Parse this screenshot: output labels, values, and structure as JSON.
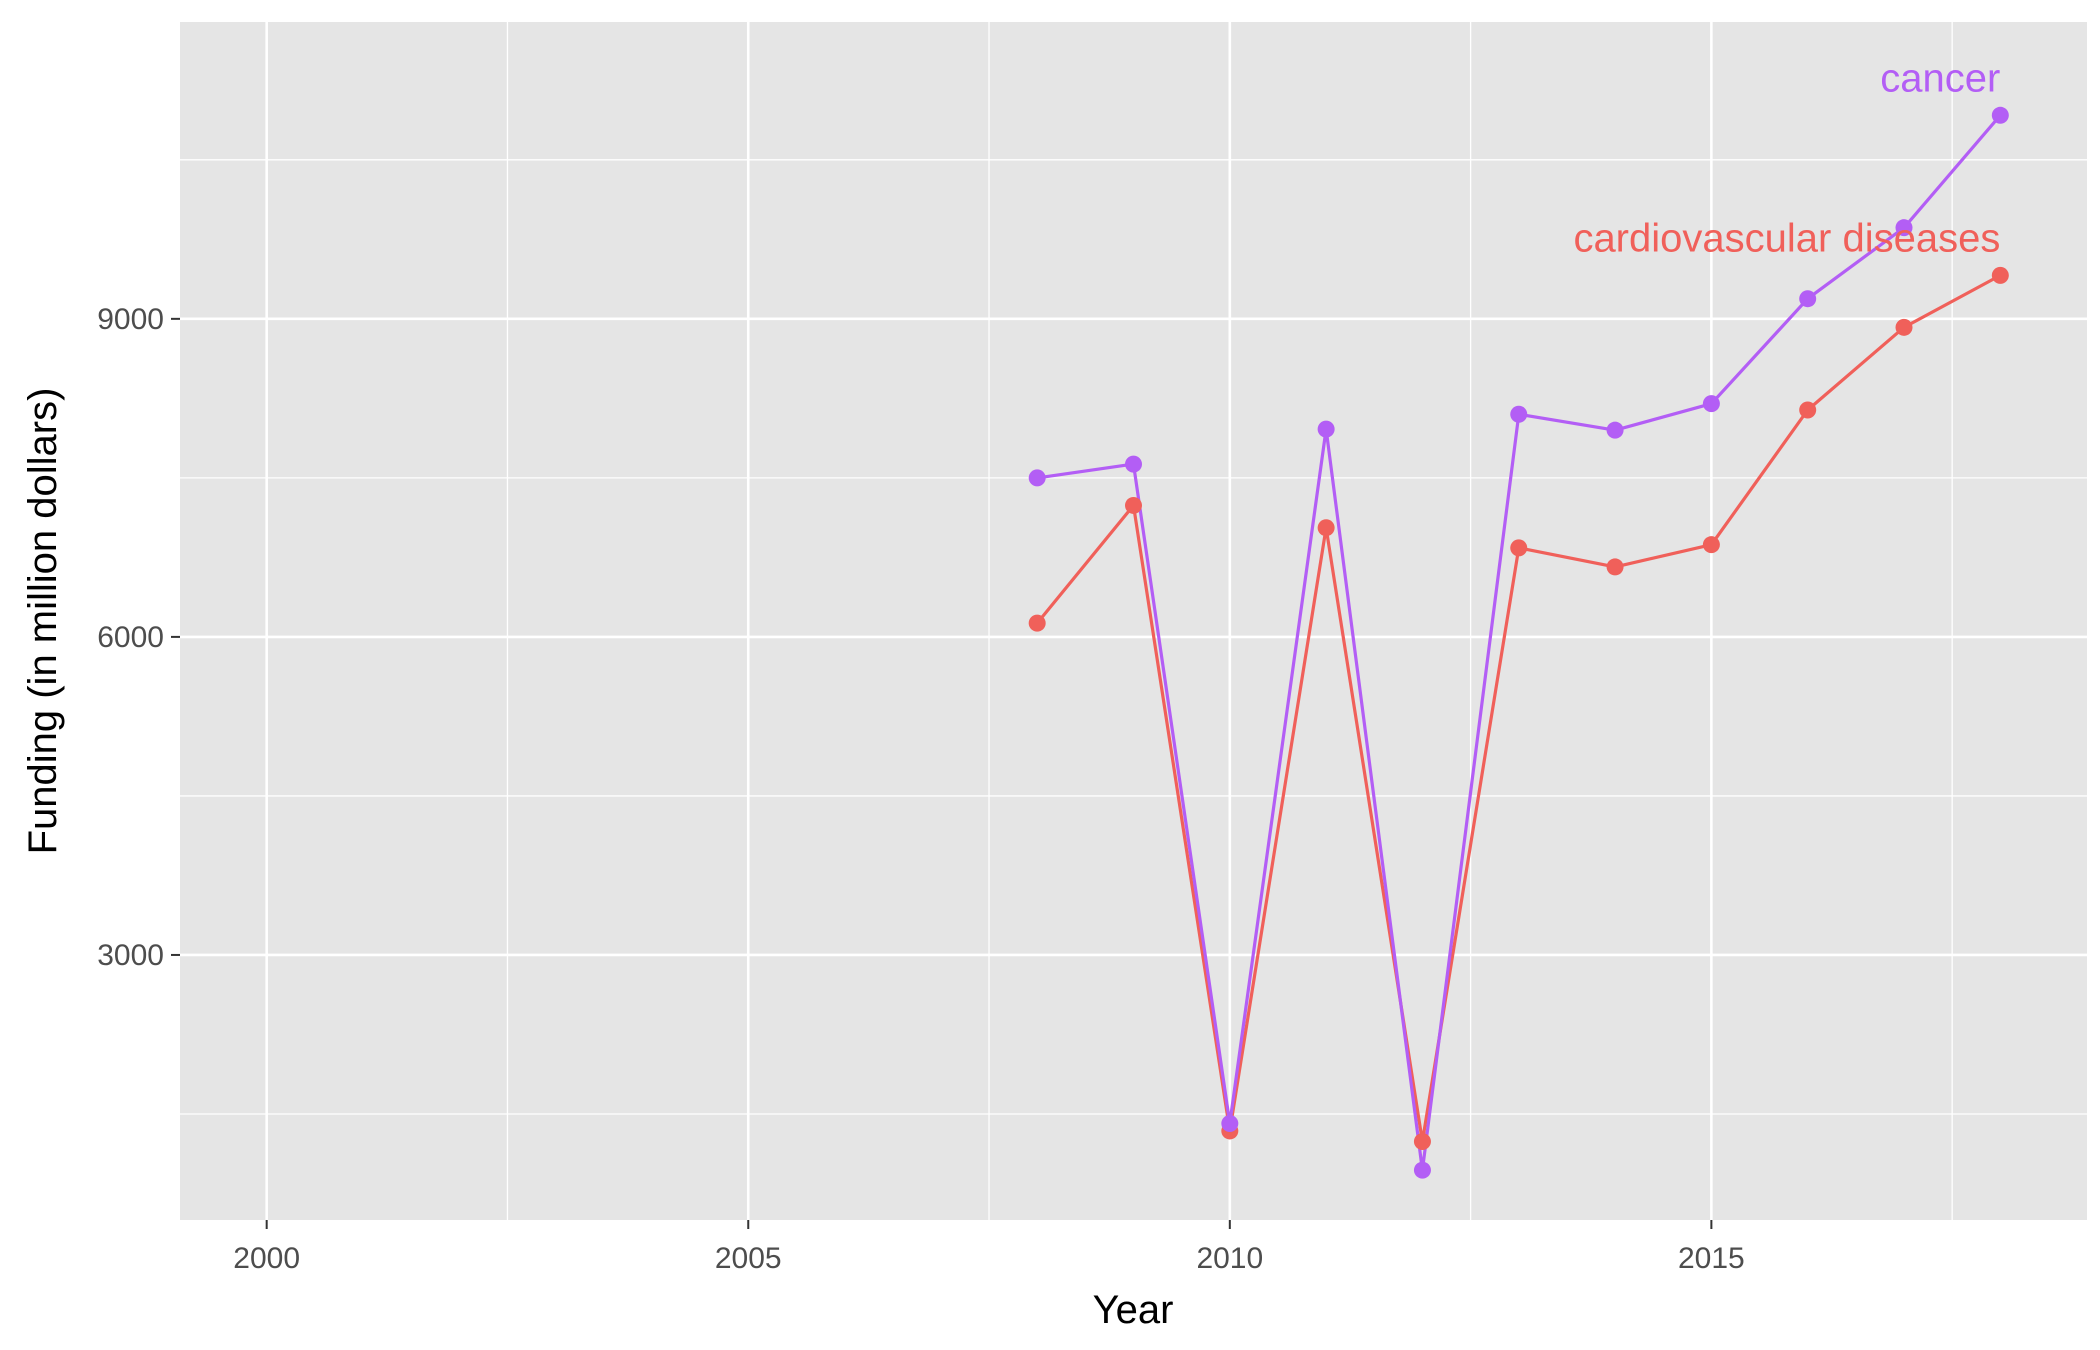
{
  "chart_data": {
    "type": "line",
    "xlabel": "Year",
    "ylabel": "Funding (in million dollars)",
    "xlim": [
      1999.1,
      2018.9
    ],
    "ylim": [
      500,
      11800
    ],
    "x_ticks": [
      2000,
      2005,
      2010,
      2015
    ],
    "x_tick_labels": [
      "2000",
      "2005",
      "2010",
      "2015"
    ],
    "y_ticks": [
      3000,
      6000,
      9000
    ],
    "y_tick_labels": [
      "3000",
      "6000",
      "9000"
    ],
    "x_minor_ticks": [
      2002.5,
      2007.5,
      2012.5,
      2017.5
    ],
    "y_minor_ticks": [
      1500,
      4500,
      7500,
      10500
    ],
    "grid": true,
    "legend": "none",
    "x": [
      2008,
      2009,
      2010,
      2011,
      2012,
      2013,
      2014,
      2015,
      2016,
      2017,
      2018
    ],
    "series": [
      {
        "name": "cardiovascular diseases",
        "color": "#f0605a",
        "values": [
          6130,
          7240,
          1340,
          7030,
          1240,
          6840,
          6660,
          6870,
          8140,
          8920,
          9410
        ]
      },
      {
        "name": "cancer",
        "color": "#b35ef5",
        "values": [
          7500,
          7630,
          1410,
          7960,
          970,
          8100,
          7950,
          8200,
          9190,
          9860,
          10920
        ]
      }
    ],
    "colors": {
      "panel_background": "#e5e5e5",
      "grid_line": "#ffffff",
      "tick_text": "#4d4d4d"
    }
  }
}
